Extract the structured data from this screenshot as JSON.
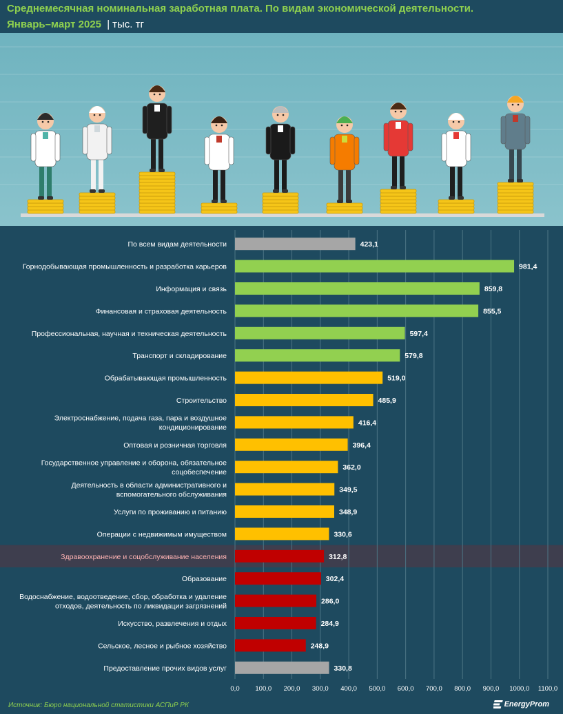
{
  "header": {
    "title_line1": "Среднемесячная номинальная заработная плата. По видам экономической деятельности.",
    "title_line2": "Январь–март 2025",
    "separator": "|",
    "unit": "тыс. тг"
  },
  "footer": {
    "source": "Источник: Бюро национальной статистики АСПиР РК",
    "logo_text": "EnergyProm"
  },
  "illustration": {
    "description_icons": [
      "doctor-icon",
      "protective-suit-worker-icon",
      "businesswoman-icon",
      "teacher-icon",
      "judge-icon",
      "street-cleaner-icon",
      "waitress-icon",
      "chef-icon",
      "builder-icon"
    ]
  },
  "colors": {
    "background": "#1e4a5f",
    "title": "#8fd14f",
    "green": "#92d050",
    "orange": "#ffc000",
    "red": "#c00000",
    "gray": "#a6a6a6",
    "highlight_row": "#3e3e4e",
    "highlight_text": "#ffb3b3"
  },
  "chart_data": {
    "type": "bar",
    "orientation": "horizontal",
    "xlim": [
      0,
      1100
    ],
    "xticks": [
      "0,0",
      "100,0",
      "200,0",
      "300,0",
      "400,0",
      "500,0",
      "600,0",
      "700,0",
      "800,0",
      "900,0",
      "1000,0",
      "1100,0"
    ],
    "grid": true,
    "highlighted_category": "Здравоохранение и соцобслуживание населения",
    "categories": [
      {
        "label": [
          "По всем видам деятельности"
        ],
        "value": 423.1,
        "value_label": "423,1",
        "color": "gray"
      },
      {
        "label": [
          "Горнодобывающая промышленность и разработка карьеров"
        ],
        "value": 981.4,
        "value_label": "981,4",
        "color": "green"
      },
      {
        "label": [
          "Информация и связь"
        ],
        "value": 859.8,
        "value_label": "859,8",
        "color": "green"
      },
      {
        "label": [
          "Финансовая и страховая деятельность"
        ],
        "value": 855.5,
        "value_label": "855,5",
        "color": "green"
      },
      {
        "label": [
          "Профессиональная, научная и техническая деятельность"
        ],
        "value": 597.4,
        "value_label": "597,4",
        "color": "green"
      },
      {
        "label": [
          "Транспорт и складирование"
        ],
        "value": 579.8,
        "value_label": "579,8",
        "color": "green"
      },
      {
        "label": [
          "Обрабатывающая промышленность"
        ],
        "value": 519.0,
        "value_label": "519,0",
        "color": "orange"
      },
      {
        "label": [
          "Строительство"
        ],
        "value": 485.9,
        "value_label": "485,9",
        "color": "orange"
      },
      {
        "label": [
          "Электроснабжение, подача газа, пара и воздушное",
          "кондиционирование"
        ],
        "value": 416.4,
        "value_label": "416,4",
        "color": "orange"
      },
      {
        "label": [
          "Оптовая и розничная торговля"
        ],
        "value": 396.4,
        "value_label": "396,4",
        "color": "orange"
      },
      {
        "label": [
          "Государственное управление и оборона, обязательное",
          "соцобеспечение"
        ],
        "value": 362.0,
        "value_label": "362,0",
        "color": "orange"
      },
      {
        "label": [
          "Деятельность в области административного и",
          "вспомогательного обслуживания"
        ],
        "value": 349.5,
        "value_label": "349,5",
        "color": "orange"
      },
      {
        "label": [
          "Услуги по проживанию и питанию"
        ],
        "value": 348.9,
        "value_label": "348,9",
        "color": "orange"
      },
      {
        "label": [
          "Операции с недвижимым имуществом"
        ],
        "value": 330.6,
        "value_label": "330,6",
        "color": "orange"
      },
      {
        "label": [
          "Здравоохранение и соцобслуживание населения"
        ],
        "value": 312.8,
        "value_label": "312,8",
        "color": "red"
      },
      {
        "label": [
          "Образование"
        ],
        "value": 302.4,
        "value_label": "302,4",
        "color": "red"
      },
      {
        "label": [
          "Водоснабжение, водоотведение, сбор, обработка и удаление",
          "отходов, деятельность по ликвидации загрязнений"
        ],
        "value": 286.0,
        "value_label": "286,0",
        "color": "red"
      },
      {
        "label": [
          "Искусство, развлечения и отдых"
        ],
        "value": 284.9,
        "value_label": "284,9",
        "color": "red"
      },
      {
        "label": [
          "Сельское, лесное и рыбное хозяйство"
        ],
        "value": 248.9,
        "value_label": "248,9",
        "color": "red"
      },
      {
        "label": [
          "Предоставление прочих видов услуг"
        ],
        "value": 330.8,
        "value_label": "330,8",
        "color": "gray"
      }
    ]
  }
}
